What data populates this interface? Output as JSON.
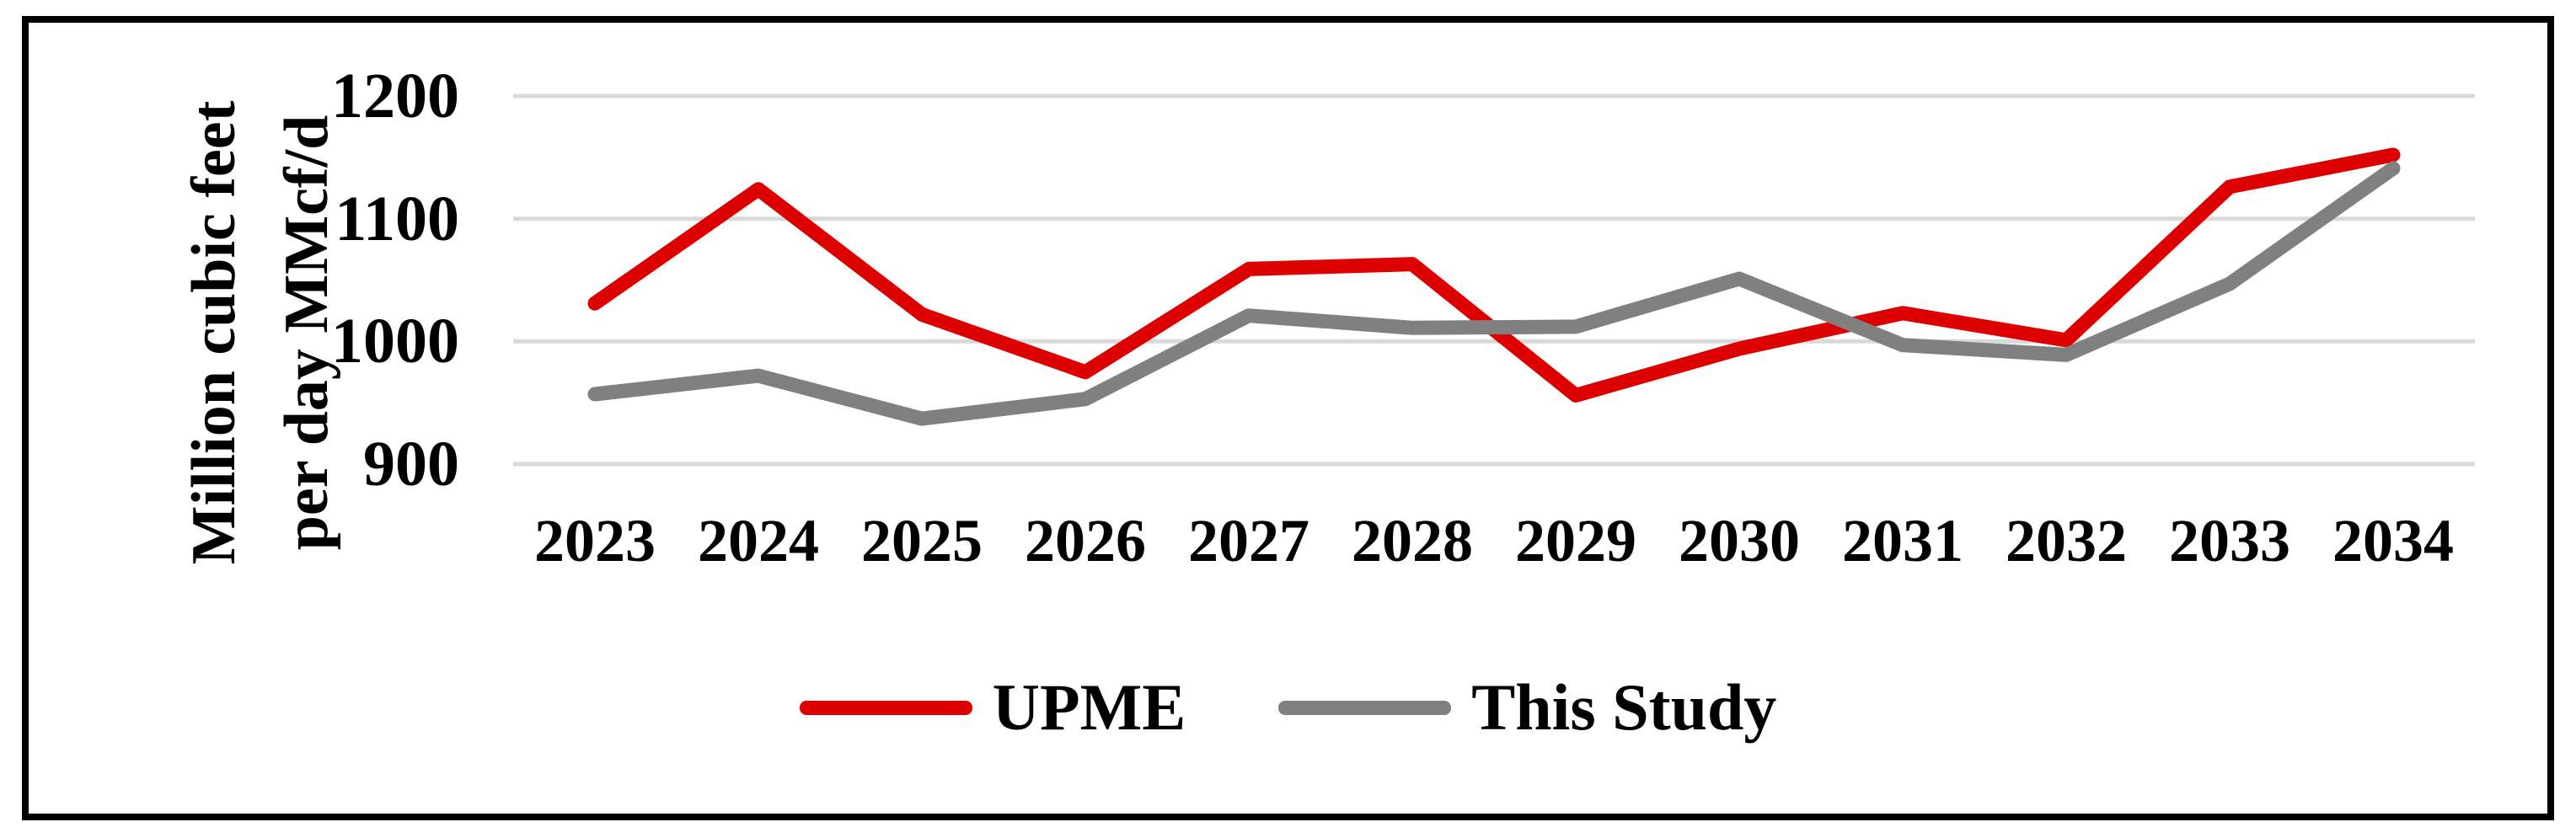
{
  "chart_data": {
    "type": "line",
    "title": "",
    "categories": [
      "2023",
      "2024",
      "2025",
      "2026",
      "2027",
      "2028",
      "2029",
      "2030",
      "2031",
      "2032",
      "2033",
      "2034"
    ],
    "series": [
      {
        "name": "UPME",
        "color": "#DD0000",
        "values": [
          1031,
          1124,
          1022,
          975,
          1059,
          1063,
          956,
          994,
          1023,
          1001,
          1126,
          1152
        ]
      },
      {
        "name": "This Study",
        "color": "#808080",
        "values": [
          957,
          972,
          937,
          953,
          1021,
          1011,
          1012,
          1051,
          997,
          989,
          1047,
          1141
        ]
      }
    ],
    "ylabel_line1": "Million cubic feet",
    "ylabel_line2": "per day MMcf/d",
    "xlabel": "",
    "ylim": [
      900,
      1200
    ],
    "yticks": [
      1200,
      1100,
      1000,
      900
    ],
    "grid": "horizontal",
    "gridline_color": "#D9D9D9",
    "frame_color": "#000000",
    "background_color": "#FFFFFF",
    "legend_position": "bottom-center"
  }
}
